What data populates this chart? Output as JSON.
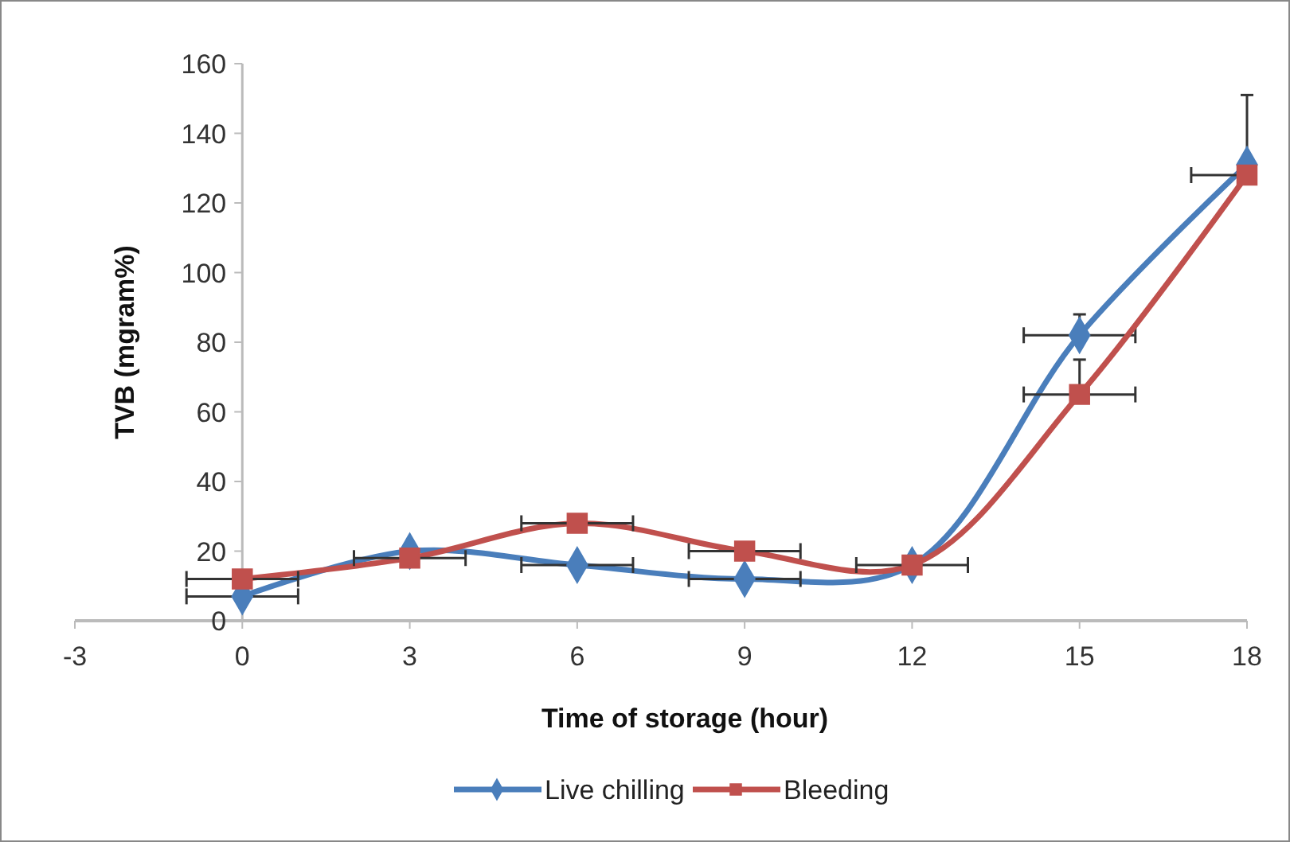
{
  "chart_data": {
    "type": "line",
    "xlabel": "Time of storage (hour)",
    "ylabel": "TVB (mgram%)",
    "x": [
      0,
      3,
      6,
      9,
      12,
      15,
      18
    ],
    "xlim": [
      -3,
      18
    ],
    "xticks": [
      -3,
      0,
      3,
      6,
      9,
      12,
      15,
      18
    ],
    "ylim": [
      0,
      160
    ],
    "yticks": [
      0,
      20,
      40,
      60,
      80,
      100,
      120,
      140,
      160
    ],
    "grid": false,
    "legend": "bottom",
    "series": [
      {
        "name": "Live chilling",
        "color": "#4a7ebb",
        "marker": "diamond",
        "values": [
          7,
          20,
          16,
          12,
          16,
          82,
          131
        ],
        "errors": [
          null,
          null,
          null,
          null,
          null,
          [
            82,
            88
          ],
          [
            131,
            151
          ]
        ],
        "xerrors": [
          1,
          null,
          1,
          1,
          null,
          1,
          null
        ]
      },
      {
        "name": "Bleeding",
        "color": "#c0504d",
        "marker": "square",
        "values": [
          12,
          18,
          28,
          20,
          16,
          65,
          128
        ],
        "errors": [
          null,
          null,
          null,
          null,
          null,
          [
            65,
            75
          ],
          null
        ],
        "xerrors": [
          1,
          1,
          1,
          1,
          1,
          1,
          [
            17,
            18
          ]
        ]
      }
    ]
  }
}
